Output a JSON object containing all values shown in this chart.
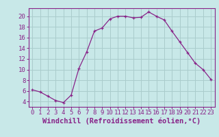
{
  "x": [
    0,
    1,
    2,
    3,
    4,
    5,
    6,
    7,
    8,
    9,
    10,
    11,
    12,
    13,
    14,
    15,
    16,
    17,
    18,
    19,
    20,
    21,
    22,
    23
  ],
  "y": [
    6.2,
    5.8,
    5.0,
    4.2,
    3.8,
    5.2,
    10.2,
    13.3,
    17.2,
    17.8,
    19.5,
    20.0,
    20.0,
    19.7,
    19.8,
    20.8,
    20.0,
    19.3,
    17.2,
    15.2,
    13.2,
    11.2,
    10.0,
    8.2
  ],
  "line_color": "#882288",
  "marker": "+",
  "bg_color": "#c8e8e8",
  "grid_color": "#aacccc",
  "xlabel": "Windchill (Refroidissement éolien,°C)",
  "xlabel_color": "#882288",
  "tick_color": "#882288",
  "spine_color": "#882288",
  "xlim": [
    -0.5,
    23.5
  ],
  "ylim": [
    3.0,
    21.5
  ],
  "yticks": [
    4,
    6,
    8,
    10,
    12,
    14,
    16,
    18,
    20
  ],
  "xticks": [
    0,
    1,
    2,
    3,
    4,
    5,
    6,
    7,
    8,
    9,
    10,
    11,
    12,
    13,
    14,
    15,
    16,
    17,
    18,
    19,
    20,
    21,
    22,
    23
  ],
  "tick_font_size": 6.5,
  "label_font_size": 7.5
}
